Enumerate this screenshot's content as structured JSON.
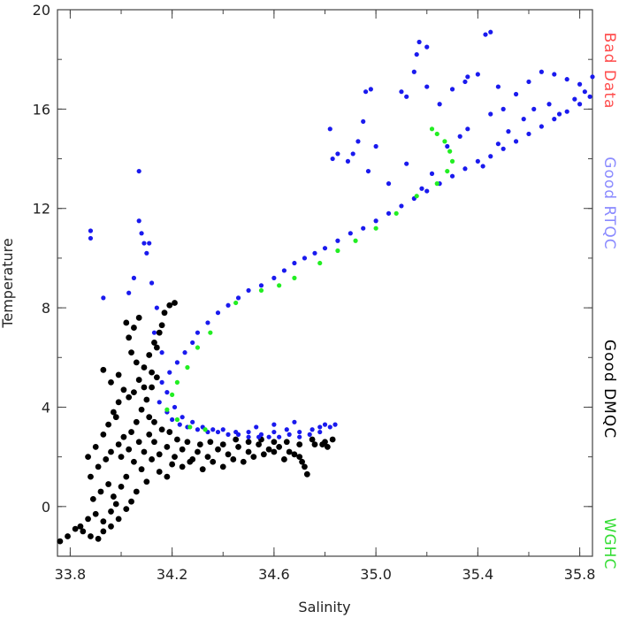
{
  "chart_data": {
    "type": "scatter",
    "title": "",
    "xlabel": "Salinity",
    "ylabel": "Temperature",
    "xlim": [
      33.75,
      35.85
    ],
    "ylim": [
      -2,
      20
    ],
    "x_ticks": [
      33.8,
      34.2,
      34.6,
      35.0,
      35.4,
      35.8
    ],
    "x_tick_labels": [
      "33.8",
      "34.2",
      "34.6",
      "35.0",
      "35.4",
      "35.8"
    ],
    "y_ticks": [
      0,
      4,
      8,
      12,
      16,
      20
    ],
    "y_tick_labels": [
      "0",
      "4",
      "8",
      "12",
      "16",
      "20"
    ],
    "grid": false,
    "legend_position": "right-side-vertical",
    "legend": [
      {
        "label": "Bad Data",
        "color": "#ff4d4d"
      },
      {
        "label": "Good RTQC",
        "color": "#8a8aff"
      },
      {
        "label": "Good DMQC",
        "color": "#000000"
      },
      {
        "label": "WGHC",
        "color": "#33dd33"
      }
    ],
    "series": [
      {
        "name": "Good DMQC",
        "color": "#000000",
        "points": [
          [
            33.76,
            -1.4
          ],
          [
            33.79,
            -1.2
          ],
          [
            33.82,
            -0.9
          ],
          [
            33.85,
            -1.0
          ],
          [
            33.88,
            -1.2
          ],
          [
            33.91,
            -1.3
          ],
          [
            33.84,
            -0.8
          ],
          [
            33.87,
            -0.5
          ],
          [
            33.9,
            -0.3
          ],
          [
            33.93,
            -0.6
          ],
          [
            33.96,
            -0.2
          ],
          [
            33.98,
            0.1
          ],
          [
            33.89,
            0.3
          ],
          [
            33.92,
            0.6
          ],
          [
            33.95,
            0.9
          ],
          [
            33.97,
            0.4
          ],
          [
            34.0,
            0.8
          ],
          [
            34.02,
            1.2
          ],
          [
            33.88,
            1.2
          ],
          [
            33.91,
            1.6
          ],
          [
            33.94,
            1.9
          ],
          [
            33.96,
            2.2
          ],
          [
            33.99,
            2.5
          ],
          [
            34.01,
            2.8
          ],
          [
            33.87,
            2.0
          ],
          [
            33.9,
            2.4
          ],
          [
            33.93,
            2.9
          ],
          [
            33.95,
            3.3
          ],
          [
            33.97,
            3.8
          ],
          [
            33.99,
            4.2
          ],
          [
            34.0,
            2.0
          ],
          [
            34.03,
            2.3
          ],
          [
            34.05,
            1.8
          ],
          [
            34.07,
            2.6
          ],
          [
            34.09,
            2.2
          ],
          [
            34.11,
            2.9
          ],
          [
            34.04,
            3.0
          ],
          [
            34.06,
            3.4
          ],
          [
            34.08,
            3.9
          ],
          [
            34.1,
            4.3
          ],
          [
            34.12,
            4.8
          ],
          [
            34.14,
            5.2
          ],
          [
            34.05,
            4.6
          ],
          [
            34.07,
            5.1
          ],
          [
            34.09,
            5.6
          ],
          [
            34.11,
            6.1
          ],
          [
            34.13,
            6.6
          ],
          [
            34.15,
            7.0
          ],
          [
            34.03,
            6.8
          ],
          [
            34.05,
            7.2
          ],
          [
            34.07,
            7.6
          ],
          [
            34.02,
            7.4
          ],
          [
            34.04,
            6.2
          ],
          [
            34.06,
            5.8
          ],
          [
            34.17,
            7.8
          ],
          [
            34.19,
            8.1
          ],
          [
            34.21,
            8.2
          ],
          [
            34.16,
            7.3
          ],
          [
            34.14,
            6.4
          ],
          [
            34.12,
            5.4
          ],
          [
            33.93,
            5.5
          ],
          [
            33.96,
            5.0
          ],
          [
            33.99,
            5.3
          ],
          [
            34.01,
            4.7
          ],
          [
            34.03,
            4.4
          ],
          [
            33.98,
            3.6
          ],
          [
            34.12,
            1.9
          ],
          [
            34.15,
            2.1
          ],
          [
            34.18,
            2.4
          ],
          [
            34.21,
            2.0
          ],
          [
            34.24,
            2.3
          ],
          [
            34.27,
            1.8
          ],
          [
            34.3,
            2.2
          ],
          [
            34.34,
            2.0
          ],
          [
            34.38,
            2.3
          ],
          [
            34.42,
            2.1
          ],
          [
            34.46,
            2.4
          ],
          [
            34.5,
            2.2
          ],
          [
            34.54,
            2.5
          ],
          [
            34.58,
            2.3
          ],
          [
            34.62,
            2.4
          ],
          [
            34.66,
            2.2
          ],
          [
            34.7,
            2.0
          ],
          [
            34.72,
            1.6
          ],
          [
            34.73,
            1.3
          ],
          [
            34.71,
            1.8
          ],
          [
            34.68,
            2.1
          ],
          [
            34.76,
            2.5
          ],
          [
            34.8,
            2.6
          ],
          [
            34.83,
            2.7
          ],
          [
            34.2,
            1.7
          ],
          [
            34.24,
            1.6
          ],
          [
            34.28,
            1.9
          ],
          [
            34.32,
            1.5
          ],
          [
            34.36,
            1.8
          ],
          [
            34.4,
            1.6
          ],
          [
            34.44,
            1.9
          ],
          [
            34.48,
            1.8
          ],
          [
            34.52,
            2.0
          ],
          [
            34.56,
            2.1
          ],
          [
            34.6,
            2.2
          ],
          [
            34.64,
            1.9
          ],
          [
            34.15,
            1.4
          ],
          [
            34.18,
            1.2
          ],
          [
            34.1,
            1.0
          ],
          [
            34.06,
            0.6
          ],
          [
            34.04,
            0.2
          ],
          [
            34.02,
            -0.1
          ],
          [
            33.96,
            -0.8
          ],
          [
            33.99,
            -0.5
          ],
          [
            33.93,
            -1.0
          ],
          [
            34.08,
            1.5
          ],
          [
            34.13,
            2.6
          ],
          [
            34.16,
            3.1
          ],
          [
            34.19,
            3.0
          ],
          [
            34.22,
            2.7
          ],
          [
            34.26,
            2.6
          ],
          [
            34.31,
            2.5
          ],
          [
            34.35,
            2.6
          ],
          [
            34.4,
            2.5
          ],
          [
            34.45,
            2.7
          ],
          [
            34.5,
            2.6
          ],
          [
            34.55,
            2.7
          ],
          [
            34.6,
            2.6
          ],
          [
            34.65,
            2.6
          ],
          [
            34.7,
            2.5
          ],
          [
            34.75,
            2.7
          ],
          [
            34.79,
            2.5
          ],
          [
            34.81,
            2.4
          ],
          [
            34.11,
            3.6
          ],
          [
            34.09,
            4.8
          ],
          [
            34.13,
            3.4
          ]
        ]
      },
      {
        "name": "Good RTQC",
        "color": "#1a1aee",
        "points": [
          [
            34.15,
            4.2
          ],
          [
            34.18,
            3.8
          ],
          [
            34.2,
            3.5
          ],
          [
            34.23,
            3.3
          ],
          [
            34.26,
            3.2
          ],
          [
            34.3,
            3.1
          ],
          [
            34.34,
            3.0
          ],
          [
            34.38,
            3.0
          ],
          [
            34.42,
            2.9
          ],
          [
            34.46,
            2.9
          ],
          [
            34.5,
            2.8
          ],
          [
            34.54,
            2.8
          ],
          [
            34.58,
            2.8
          ],
          [
            34.62,
            2.8
          ],
          [
            34.66,
            2.9
          ],
          [
            34.7,
            2.8
          ],
          [
            34.74,
            2.9
          ],
          [
            34.78,
            3.0
          ],
          [
            34.82,
            3.2
          ],
          [
            34.84,
            3.3
          ],
          [
            34.8,
            3.3
          ],
          [
            34.16,
            5.0
          ],
          [
            34.19,
            5.4
          ],
          [
            34.22,
            5.8
          ],
          [
            34.25,
            6.2
          ],
          [
            34.28,
            6.6
          ],
          [
            34.3,
            7.0
          ],
          [
            34.34,
            7.4
          ],
          [
            34.38,
            7.8
          ],
          [
            34.42,
            8.1
          ],
          [
            34.46,
            8.4
          ],
          [
            34.5,
            8.7
          ],
          [
            34.55,
            8.9
          ],
          [
            34.6,
            9.2
          ],
          [
            34.64,
            9.5
          ],
          [
            34.68,
            9.8
          ],
          [
            34.72,
            10.0
          ],
          [
            34.76,
            10.2
          ],
          [
            34.8,
            10.4
          ],
          [
            34.85,
            10.7
          ],
          [
            34.9,
            11.0
          ],
          [
            34.95,
            11.2
          ],
          [
            35.0,
            11.5
          ],
          [
            35.05,
            11.8
          ],
          [
            35.1,
            12.1
          ],
          [
            35.15,
            12.4
          ],
          [
            35.2,
            12.7
          ],
          [
            35.25,
            13.0
          ],
          [
            35.3,
            13.3
          ],
          [
            35.35,
            13.6
          ],
          [
            35.4,
            13.9
          ],
          [
            35.45,
            14.1
          ],
          [
            35.5,
            14.4
          ],
          [
            35.55,
            14.7
          ],
          [
            35.6,
            15.0
          ],
          [
            35.65,
            15.3
          ],
          [
            35.7,
            15.6
          ],
          [
            35.75,
            15.9
          ],
          [
            35.8,
            16.2
          ],
          [
            35.84,
            16.5
          ],
          [
            35.85,
            17.3
          ],
          [
            35.8,
            17.0
          ],
          [
            35.75,
            17.2
          ],
          [
            35.7,
            17.4
          ],
          [
            35.65,
            17.5
          ],
          [
            35.6,
            17.1
          ],
          [
            35.55,
            16.6
          ],
          [
            35.5,
            16.0
          ],
          [
            35.45,
            15.8
          ],
          [
            35.4,
            17.4
          ],
          [
            35.35,
            17.1
          ],
          [
            35.3,
            16.8
          ],
          [
            35.25,
            16.2
          ],
          [
            35.2,
            16.9
          ],
          [
            35.17,
            18.7
          ],
          [
            35.16,
            18.2
          ],
          [
            35.45,
            19.1
          ],
          [
            35.43,
            19.0
          ],
          [
            35.1,
            16.7
          ],
          [
            35.12,
            16.5
          ],
          [
            34.96,
            16.7
          ],
          [
            34.98,
            16.8
          ],
          [
            34.95,
            15.5
          ],
          [
            34.93,
            14.7
          ],
          [
            34.91,
            14.2
          ],
          [
            34.89,
            13.9
          ],
          [
            34.85,
            14.2
          ],
          [
            34.82,
            15.2
          ],
          [
            34.83,
            14.0
          ],
          [
            34.97,
            13.5
          ],
          [
            35.0,
            14.5
          ],
          [
            35.05,
            13.0
          ],
          [
            35.12,
            13.8
          ],
          [
            35.18,
            12.8
          ],
          [
            35.22,
            13.4
          ],
          [
            35.28,
            14.5
          ],
          [
            35.33,
            14.9
          ],
          [
            35.36,
            15.2
          ],
          [
            35.42,
            13.7
          ],
          [
            35.48,
            14.6
          ],
          [
            35.52,
            15.1
          ],
          [
            35.58,
            15.6
          ],
          [
            35.62,
            16.0
          ],
          [
            35.68,
            16.2
          ],
          [
            35.72,
            15.8
          ],
          [
            35.78,
            16.4
          ],
          [
            35.82,
            16.7
          ],
          [
            35.36,
            17.3
          ],
          [
            35.48,
            16.9
          ],
          [
            35.2,
            18.5
          ],
          [
            35.15,
            17.5
          ],
          [
            34.07,
            11.5
          ],
          [
            34.08,
            11.0
          ],
          [
            34.09,
            10.6
          ],
          [
            34.1,
            10.2
          ],
          [
            34.11,
            10.6
          ],
          [
            34.07,
            13.5
          ],
          [
            33.88,
            11.1
          ],
          [
            33.88,
            10.8
          ],
          [
            33.93,
            8.4
          ],
          [
            34.05,
            9.2
          ],
          [
            34.03,
            8.6
          ],
          [
            34.12,
            9.0
          ],
          [
            34.14,
            8.0
          ],
          [
            34.13,
            7.0
          ],
          [
            34.16,
            6.2
          ],
          [
            34.18,
            4.6
          ],
          [
            34.21,
            4.0
          ],
          [
            34.24,
            3.6
          ],
          [
            34.28,
            3.4
          ],
          [
            34.32,
            3.2
          ],
          [
            34.36,
            3.1
          ],
          [
            34.4,
            3.1
          ],
          [
            34.45,
            3.0
          ],
          [
            34.5,
            3.0
          ],
          [
            34.55,
            2.9
          ],
          [
            34.6,
            3.0
          ],
          [
            34.65,
            3.1
          ],
          [
            34.7,
            3.0
          ],
          [
            34.75,
            3.1
          ],
          [
            34.78,
            3.2
          ],
          [
            34.68,
            3.4
          ],
          [
            34.6,
            3.3
          ],
          [
            34.53,
            3.2
          ]
        ]
      },
      {
        "name": "WGHC",
        "color": "#22ee22",
        "points": [
          [
            34.2,
            4.5
          ],
          [
            34.22,
            5.0
          ],
          [
            34.26,
            5.6
          ],
          [
            34.3,
            6.4
          ],
          [
            34.35,
            7.0
          ],
          [
            34.45,
            8.2
          ],
          [
            34.55,
            8.7
          ],
          [
            34.62,
            8.9
          ],
          [
            34.68,
            9.2
          ],
          [
            34.78,
            9.8
          ],
          [
            34.85,
            10.3
          ],
          [
            34.92,
            10.7
          ],
          [
            35.0,
            11.2
          ],
          [
            35.08,
            11.8
          ],
          [
            35.16,
            12.5
          ],
          [
            35.24,
            13.0
          ],
          [
            35.28,
            13.5
          ],
          [
            35.3,
            13.9
          ],
          [
            35.29,
            14.3
          ],
          [
            35.27,
            14.7
          ],
          [
            35.24,
            15.0
          ],
          [
            35.22,
            15.2
          ],
          [
            34.27,
            3.2
          ],
          [
            34.33,
            3.1
          ],
          [
            34.22,
            3.5
          ],
          [
            34.18,
            3.9
          ]
        ]
      }
    ]
  }
}
